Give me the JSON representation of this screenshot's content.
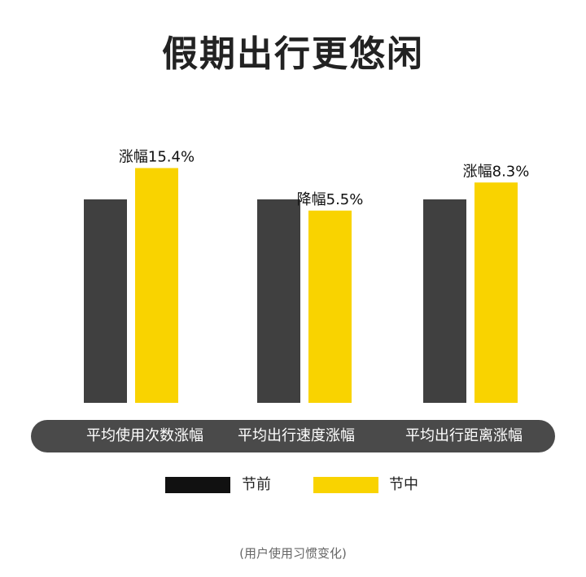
{
  "chart_data": {
    "type": "bar",
    "title": "假期出行更悠闲",
    "categories": [
      "平均使用次数涨幅",
      "平均出行速度涨幅",
      "平均出行距离涨幅"
    ],
    "series": [
      {
        "name": "节前",
        "values": [
          100,
          100,
          100
        ],
        "color": "#404040"
      },
      {
        "name": "节中",
        "values": [
          115.4,
          94.5,
          108.3
        ],
        "color": "#f9d300"
      }
    ],
    "annotations": [
      "涨幅15.4%",
      "降幅5.5%",
      "涨幅8.3%"
    ],
    "legend_position": "bottom",
    "grid": false
  },
  "legend": {
    "items": [
      {
        "label": "节前",
        "color": "#111111"
      },
      {
        "label": "节中",
        "color": "#f9d300"
      }
    ]
  },
  "footnote": "(用户使用习惯变化)"
}
